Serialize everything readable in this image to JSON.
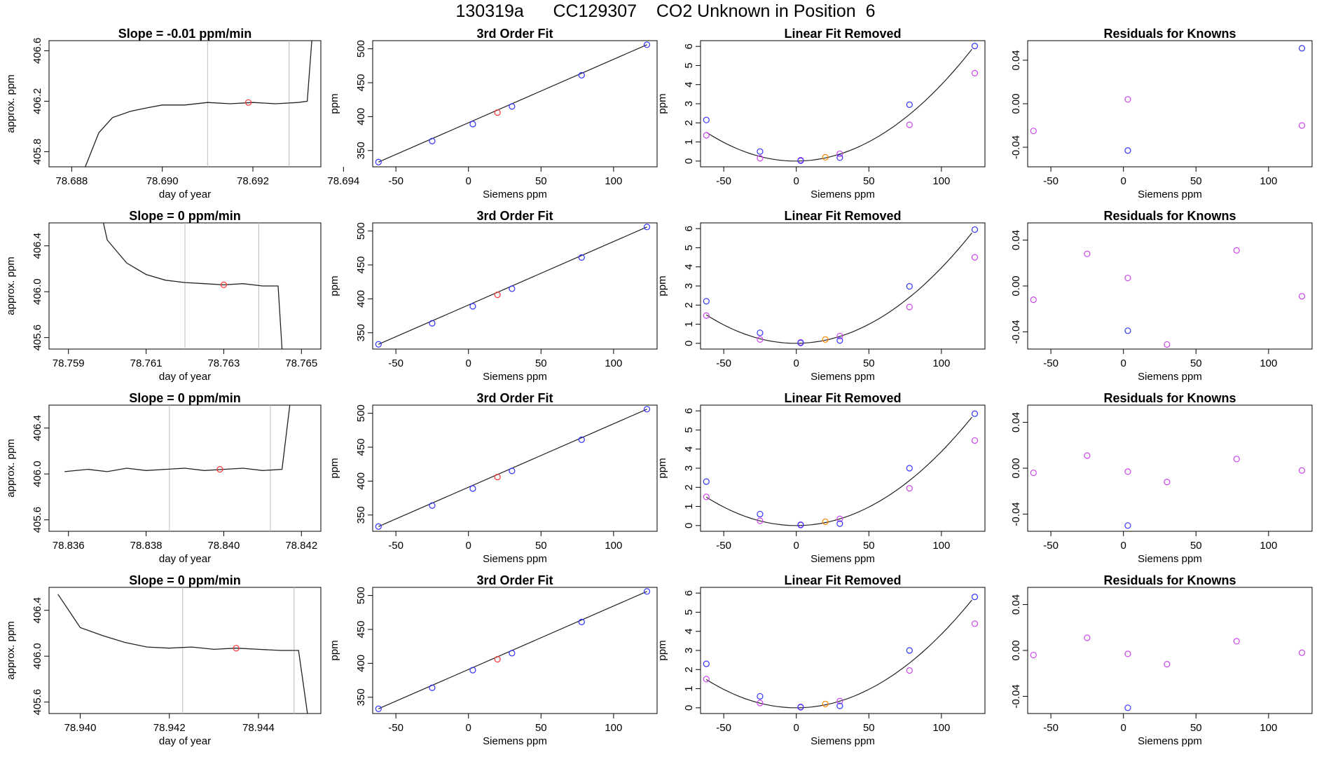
{
  "page": {
    "title": "130319a      CC129307    CO2 Unknown in Position  6"
  },
  "colors": {
    "known": "#3333ff",
    "unknown": "#ff3333",
    "residual": "#cc44ee",
    "orange": "#ff8800",
    "line": "#222222",
    "gridline": "#bbbbbb"
  },
  "chart_data": [
    {
      "type": "line",
      "title": "Slope =  -0.01  ppm/min",
      "xlabel": "day of year",
      "ylabel": "approx. ppm",
      "xlim": [
        78.6875,
        78.6935
      ],
      "ylim": [
        405.68,
        406.68
      ],
      "xticks": [
        "78.688",
        "78.690",
        "78.692",
        "78.694"
      ],
      "yticks": [
        "405.8",
        "406.2",
        "406.6"
      ],
      "trace": [
        [
          78.6883,
          405.62
        ],
        [
          78.6886,
          405.95
        ],
        [
          78.6889,
          406.07
        ],
        [
          78.6893,
          406.12
        ],
        [
          78.6897,
          406.15
        ],
        [
          78.69,
          406.17
        ],
        [
          78.6905,
          406.17
        ],
        [
          78.691,
          406.19
        ],
        [
          78.6915,
          406.18
        ],
        [
          78.692,
          406.19
        ],
        [
          78.6925,
          406.18
        ],
        [
          78.693,
          406.19
        ],
        [
          78.6932,
          406.2
        ],
        [
          78.6933,
          406.7
        ]
      ],
      "vlines": [
        78.691,
        78.6928
      ],
      "marker": [
        78.6919,
        406.19
      ]
    },
    {
      "type": "scatter",
      "title": "3rd Order Fit",
      "xlabel": "Siemens ppm",
      "ylabel": "ppm",
      "xlim": [
        -66,
        130
      ],
      "ylim": [
        326,
        512
      ],
      "xticks": [
        "-50",
        "0",
        "50",
        "100"
      ],
      "yticks": [
        "350",
        "400",
        "450",
        "500"
      ],
      "known": [
        [
          -62,
          333
        ],
        [
          -25,
          364
        ],
        [
          3,
          389
        ],
        [
          30,
          415
        ],
        [
          78,
          461
        ],
        [
          123,
          506
        ]
      ],
      "unknown": [
        [
          20,
          406
        ]
      ],
      "fitline": [
        [
          -62,
          333
        ],
        [
          123,
          506
        ]
      ]
    },
    {
      "type": "scatter",
      "title": "Linear Fit Removed",
      "xlabel": "Siemens ppm",
      "ylabel": "ppm",
      "xlim": [
        -66,
        130
      ],
      "ylim": [
        -0.3,
        6.3
      ],
      "xticks": [
        "-50",
        "0",
        "50",
        "100"
      ],
      "yticks": [
        "0",
        "1",
        "2",
        "3",
        "4",
        "5",
        "6"
      ],
      "known": [
        [
          -62,
          2.15
        ],
        [
          -25,
          0.5
        ],
        [
          3,
          0.02
        ],
        [
          30,
          0.18
        ],
        [
          78,
          2.95
        ],
        [
          123,
          6.02
        ]
      ],
      "other": [
        [
          -62,
          1.35
        ],
        [
          -25,
          0.15
        ],
        [
          3,
          0.05
        ],
        [
          30,
          0.38
        ],
        [
          78,
          1.9
        ],
        [
          123,
          4.6
        ]
      ],
      "unknown": [
        [
          20,
          0.2
        ]
      ],
      "curve": {
        "a": 0.000397,
        "b": 0.0003,
        "c": 0
      }
    },
    {
      "type": "scatter",
      "title": "Residuals for Knowns",
      "xlabel": "Siemens ppm",
      "ylabel": "",
      "xlim": [
        -66,
        130
      ],
      "ylim": [
        -0.058,
        0.058
      ],
      "xticks": [
        "-50",
        "0",
        "50",
        "100"
      ],
      "yticks": [
        "-0.04",
        "0.00",
        "0.04"
      ],
      "known": [
        [
          3,
          -0.043
        ],
        [
          123,
          0.051
        ]
      ],
      "other": [
        [
          -62,
          -0.025
        ],
        [
          3,
          0.004
        ],
        [
          123,
          -0.02
        ]
      ]
    },
    {
      "type": "line",
      "title": "Slope =  0  ppm/min",
      "xlabel": "day of year",
      "ylabel": "approx. ppm",
      "xlim": [
        78.7585,
        78.7655
      ],
      "ylim": [
        405.5,
        406.6
      ],
      "xticks": [
        "78.759",
        "78.761",
        "78.763",
        "78.765"
      ],
      "yticks": [
        "405.6",
        "406.0",
        "406.4"
      ],
      "trace": [
        [
          78.7599,
          406.65
        ],
        [
          78.76,
          406.45
        ],
        [
          78.7605,
          406.25
        ],
        [
          78.761,
          406.15
        ],
        [
          78.7615,
          406.1
        ],
        [
          78.762,
          406.08
        ],
        [
          78.7625,
          406.07
        ],
        [
          78.763,
          406.06
        ],
        [
          78.7635,
          406.07
        ],
        [
          78.764,
          406.05
        ],
        [
          78.7644,
          406.05
        ],
        [
          78.7645,
          405.5
        ]
      ],
      "vlines": [
        78.762,
        78.7639
      ],
      "marker": [
        78.763,
        406.06
      ]
    },
    {
      "type": "scatter",
      "title": "3rd Order Fit",
      "xlabel": "Siemens ppm",
      "ylabel": "ppm",
      "xlim": [
        -66,
        130
      ],
      "ylim": [
        326,
        512
      ],
      "xticks": [
        "-50",
        "0",
        "50",
        "100"
      ],
      "yticks": [
        "350",
        "400",
        "450",
        "500"
      ],
      "known": [
        [
          -62,
          333
        ],
        [
          -25,
          364
        ],
        [
          3,
          389
        ],
        [
          30,
          415
        ],
        [
          78,
          461
        ],
        [
          123,
          506
        ]
      ],
      "unknown": [
        [
          20,
          406
        ]
      ],
      "fitline": [
        [
          -62,
          333
        ],
        [
          123,
          506
        ]
      ]
    },
    {
      "type": "scatter",
      "title": "Linear Fit Removed",
      "xlabel": "Siemens ppm",
      "ylabel": "ppm",
      "xlim": [
        -66,
        130
      ],
      "ylim": [
        -0.3,
        6.3
      ],
      "xticks": [
        "-50",
        "0",
        "50",
        "100"
      ],
      "yticks": [
        "0",
        "1",
        "2",
        "3",
        "4",
        "5",
        "6"
      ],
      "known": [
        [
          -62,
          2.2
        ],
        [
          -25,
          0.55
        ],
        [
          3,
          0.02
        ],
        [
          30,
          0.15
        ],
        [
          78,
          2.98
        ],
        [
          123,
          5.95
        ]
      ],
      "other": [
        [
          -62,
          1.45
        ],
        [
          -25,
          0.2
        ],
        [
          3,
          0.05
        ],
        [
          30,
          0.38
        ],
        [
          78,
          1.9
        ],
        [
          123,
          4.5
        ]
      ],
      "unknown": [
        [
          20,
          0.2
        ]
      ],
      "curve": {
        "a": 0.000392,
        "b": 0.0003,
        "c": 0
      }
    },
    {
      "type": "scatter",
      "title": "Residuals for Knowns",
      "xlabel": "Siemens ppm",
      "ylabel": "",
      "xlim": [
        -66,
        130
      ],
      "ylim": [
        -0.055,
        0.055
      ],
      "xticks": [
        "-50",
        "0",
        "50",
        "100"
      ],
      "yticks": [
        "-0.04",
        "0.00",
        "0.04"
      ],
      "known": [
        [
          3,
          -0.039
        ]
      ],
      "other": [
        [
          -62,
          -0.012
        ],
        [
          -25,
          0.028
        ],
        [
          3,
          0.007
        ],
        [
          30,
          -0.051
        ],
        [
          78,
          0.031
        ],
        [
          123,
          -0.009
        ]
      ]
    },
    {
      "type": "line",
      "title": "Slope =  0  ppm/min",
      "xlabel": "day of year",
      "ylabel": "approx. ppm",
      "xlim": [
        78.8355,
        78.8425
      ],
      "ylim": [
        405.5,
        406.6
      ],
      "xticks": [
        "78.836",
        "78.838",
        "78.840",
        "78.842"
      ],
      "yticks": [
        "405.6",
        "406.0",
        "406.4"
      ],
      "trace": [
        [
          78.8359,
          406.02
        ],
        [
          78.8365,
          406.04
        ],
        [
          78.837,
          406.02
        ],
        [
          78.8375,
          406.05
        ],
        [
          78.838,
          406.03
        ],
        [
          78.8385,
          406.04
        ],
        [
          78.839,
          406.05
        ],
        [
          78.8395,
          406.03
        ],
        [
          78.84,
          406.04
        ],
        [
          78.8405,
          406.05
        ],
        [
          78.841,
          406.03
        ],
        [
          78.8415,
          406.04
        ],
        [
          78.8417,
          406.7
        ]
      ],
      "vlines": [
        78.8386,
        78.8412
      ],
      "marker": [
        78.8399,
        406.04
      ]
    },
    {
      "type": "scatter",
      "title": "3rd Order Fit",
      "xlabel": "Siemens ppm",
      "ylabel": "ppm",
      "xlim": [
        -66,
        130
      ],
      "ylim": [
        326,
        512
      ],
      "xticks": [
        "-50",
        "0",
        "50",
        "100"
      ],
      "yticks": [
        "350",
        "400",
        "450",
        "500"
      ],
      "known": [
        [
          -62,
          333
        ],
        [
          -25,
          364
        ],
        [
          3,
          389
        ],
        [
          30,
          415
        ],
        [
          78,
          461
        ],
        [
          123,
          506
        ]
      ],
      "unknown": [
        [
          20,
          406
        ]
      ],
      "fitline": [
        [
          -62,
          333
        ],
        [
          123,
          506
        ]
      ]
    },
    {
      "type": "scatter",
      "title": "Linear Fit Removed",
      "xlabel": "Siemens ppm",
      "ylabel": "ppm",
      "xlim": [
        -66,
        130
      ],
      "ylim": [
        -0.3,
        6.3
      ],
      "xticks": [
        "-50",
        "0",
        "50",
        "100"
      ],
      "yticks": [
        "0",
        "1",
        "2",
        "3",
        "4",
        "5",
        "6"
      ],
      "known": [
        [
          -62,
          2.3
        ],
        [
          -25,
          0.6
        ],
        [
          3,
          0.03
        ],
        [
          30,
          0.1
        ],
        [
          78,
          3.0
        ],
        [
          123,
          5.85
        ]
      ],
      "other": [
        [
          -62,
          1.5
        ],
        [
          -25,
          0.25
        ],
        [
          3,
          0.05
        ],
        [
          30,
          0.35
        ],
        [
          78,
          1.95
        ],
        [
          123,
          4.45
        ]
      ],
      "unknown": [
        [
          20,
          0.2
        ]
      ],
      "curve": {
        "a": 0.000387,
        "b": 0.0,
        "c": 0
      }
    },
    {
      "type": "scatter",
      "title": "Residuals for Knowns",
      "xlabel": "Siemens ppm",
      "ylabel": "",
      "xlim": [
        -66,
        130
      ],
      "ylim": [
        -0.055,
        0.055
      ],
      "xticks": [
        "-50",
        "0",
        "50",
        "100"
      ],
      "yticks": [
        "-0.04",
        "0.00",
        "0.04"
      ],
      "known": [
        [
          3,
          -0.05
        ]
      ],
      "other": [
        [
          -62,
          -0.004
        ],
        [
          -25,
          0.011
        ],
        [
          3,
          -0.003
        ],
        [
          30,
          -0.012
        ],
        [
          78,
          0.008
        ],
        [
          123,
          -0.002
        ]
      ]
    },
    {
      "type": "line",
      "title": "Slope =  0  ppm/min",
      "xlabel": "day of year",
      "ylabel": "approx. ppm",
      "xlim": [
        78.9393,
        78.9454
      ],
      "ylim": [
        405.5,
        406.6
      ],
      "xticks": [
        "78.940",
        "78.942",
        "78.944"
      ],
      "yticks": [
        "405.6",
        "406.0",
        "406.4"
      ],
      "trace": [
        [
          78.9395,
          406.54
        ],
        [
          78.94,
          406.25
        ],
        [
          78.9405,
          406.18
        ],
        [
          78.941,
          406.12
        ],
        [
          78.9415,
          406.08
        ],
        [
          78.942,
          406.07
        ],
        [
          78.9425,
          406.08
        ],
        [
          78.943,
          406.06
        ],
        [
          78.9435,
          406.07
        ],
        [
          78.944,
          406.06
        ],
        [
          78.9445,
          406.05
        ],
        [
          78.9449,
          406.05
        ],
        [
          78.9451,
          405.5
        ]
      ],
      "vlines": [
        78.9423,
        78.9448
      ],
      "marker": [
        78.9435,
        406.07
      ]
    },
    {
      "type": "scatter",
      "title": "3rd Order Fit",
      "xlabel": "Siemens ppm",
      "ylabel": "ppm",
      "xlim": [
        -66,
        130
      ],
      "ylim": [
        326,
        512
      ],
      "xticks": [
        "-50",
        "0",
        "50",
        "100"
      ],
      "yticks": [
        "350",
        "400",
        "450",
        "500"
      ],
      "known": [
        [
          -62,
          333
        ],
        [
          -25,
          364
        ],
        [
          3,
          390
        ],
        [
          30,
          415
        ],
        [
          78,
          461
        ],
        [
          123,
          506
        ]
      ],
      "unknown": [
        [
          20,
          406
        ]
      ],
      "fitline": [
        [
          -62,
          333
        ],
        [
          123,
          506
        ]
      ]
    },
    {
      "type": "scatter",
      "title": "Linear Fit Removed",
      "xlabel": "Siemens ppm",
      "ylabel": "ppm",
      "xlim": [
        -66,
        130
      ],
      "ylim": [
        -0.3,
        6.3
      ],
      "xticks": [
        "-50",
        "0",
        "50",
        "100"
      ],
      "yticks": [
        "0",
        "1",
        "2",
        "3",
        "4",
        "5",
        "6"
      ],
      "known": [
        [
          -62,
          2.3
        ],
        [
          -25,
          0.6
        ],
        [
          3,
          0.03
        ],
        [
          30,
          0.1
        ],
        [
          78,
          3.0
        ],
        [
          123,
          5.8
        ]
      ],
      "other": [
        [
          -62,
          1.5
        ],
        [
          -25,
          0.25
        ],
        [
          3,
          0.05
        ],
        [
          30,
          0.35
        ],
        [
          78,
          1.95
        ],
        [
          123,
          4.4
        ]
      ],
      "unknown": [
        [
          20,
          0.2
        ]
      ],
      "curve": {
        "a": 0.000385,
        "b": 0.0,
        "c": 0
      }
    },
    {
      "type": "scatter",
      "title": "Residuals for Knowns",
      "xlabel": "Siemens ppm",
      "ylabel": "",
      "xlim": [
        -66,
        130
      ],
      "ylim": [
        -0.055,
        0.055
      ],
      "xticks": [
        "-50",
        "0",
        "50",
        "100"
      ],
      "yticks": [
        "-0.04",
        "0.00",
        "0.04"
      ],
      "known": [
        [
          3,
          -0.05
        ]
      ],
      "other": [
        [
          -62,
          -0.004
        ],
        [
          -25,
          0.011
        ],
        [
          3,
          -0.003
        ],
        [
          30,
          -0.012
        ],
        [
          78,
          0.008
        ],
        [
          123,
          -0.002
        ]
      ]
    }
  ]
}
